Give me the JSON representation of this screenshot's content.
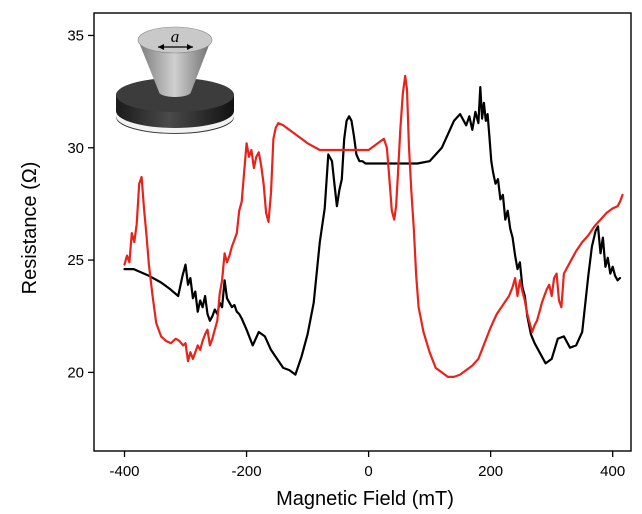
{
  "chart_data": {
    "type": "line",
    "title": "",
    "xlabel": "Magnetic Field (mT)",
    "ylabel": "Resistance (Ω)",
    "xlim": [
      -450,
      430
    ],
    "ylim": [
      16.5,
      36
    ],
    "xticks": [
      -400,
      -200,
      0,
      200,
      400
    ],
    "yticks": [
      20,
      25,
      30,
      35
    ],
    "xtick_labels": [
      "-400",
      "-200",
      "0",
      "200",
      "400"
    ],
    "ytick_labels": [
      "20",
      "25",
      "30",
      "35"
    ],
    "grid": false,
    "legend": "none",
    "inset_label": "a",
    "series": [
      {
        "color": "#000000",
        "x": [
          -400,
          -385,
          -360,
          -340,
          -325,
          -312,
          -305,
          -300,
          -296,
          -292,
          -288,
          -284,
          -280,
          -276,
          -272,
          -268,
          -264,
          -260,
          -256,
          -252,
          -248,
          -244,
          -240,
          -236,
          -232,
          -228,
          -224,
          -220,
          -216,
          -212,
          -208,
          -200,
          -190,
          -180,
          -170,
          -160,
          -150,
          -140,
          -130,
          -120,
          -110,
          -100,
          -90,
          -80,
          -72,
          -66,
          -60,
          -56,
          -52,
          -48,
          -44,
          -40,
          -36,
          -32,
          -28,
          -24,
          -20,
          -15,
          -10,
          -5,
          0,
          10,
          20,
          40,
          60,
          80,
          100,
          120,
          140,
          150,
          160,
          165,
          170,
          175,
          180,
          183,
          186,
          189,
          192,
          195,
          198,
          201,
          204,
          208,
          212,
          216,
          220,
          224,
          228,
          232,
          236,
          240,
          244,
          248,
          252,
          256,
          260,
          266,
          272,
          280,
          290,
          300,
          310,
          320,
          330,
          340,
          350,
          360,
          366,
          372,
          376,
          380,
          384,
          388,
          392,
          396,
          400,
          404,
          408,
          412
        ],
        "y": [
          24.6,
          24.6,
          24.3,
          24,
          23.7,
          23.4,
          24.3,
          24.8,
          23.9,
          24.2,
          23.3,
          23.6,
          22.7,
          23.2,
          22.9,
          23.4,
          22.6,
          22.3,
          22.5,
          22.8,
          22.6,
          23.1,
          22.9,
          24.1,
          23.3,
          23.1,
          22.9,
          23.0,
          22.7,
          22.6,
          22.4,
          21.9,
          21.2,
          21.8,
          21.6,
          21.0,
          20.6,
          20.2,
          20.1,
          19.9,
          20.7,
          21.7,
          23.1,
          25.8,
          27.3,
          29.7,
          29.4,
          28.4,
          27.4,
          28.1,
          28.6,
          30.4,
          31.2,
          31.4,
          31.2,
          30.5,
          29.7,
          29.4,
          29.4,
          29.3,
          29.3,
          29.3,
          29.3,
          29.3,
          29.3,
          29.3,
          29.4,
          30.0,
          31.2,
          31.5,
          31.0,
          31.4,
          30.8,
          31.6,
          31.1,
          32.7,
          31.3,
          32.0,
          31.2,
          31.5,
          30.5,
          29.4,
          28.9,
          28.4,
          28.6,
          27.7,
          27.9,
          26.8,
          27.2,
          26.4,
          26.0,
          25.2,
          24.6,
          24.9,
          23.8,
          23.4,
          22.5,
          21.7,
          21.3,
          20.9,
          20.4,
          20.6,
          21.5,
          21.6,
          21.1,
          21.2,
          21.8,
          24.3,
          25.6,
          26.3,
          26.5,
          25.3,
          26.0,
          24.7,
          25.1,
          24.4,
          24.7,
          24.3,
          24.1,
          24.2
        ],
        "width": 2.2
      },
      {
        "color": "#e8231c",
        "x": [
          -400,
          -396,
          -392,
          -388,
          -384,
          -380,
          -376,
          -372,
          -368,
          -364,
          -360,
          -354,
          -348,
          -340,
          -332,
          -324,
          -316,
          -310,
          -304,
          -300,
          -296,
          -292,
          -288,
          -284,
          -280,
          -276,
          -272,
          -268,
          -264,
          -260,
          -256,
          -252,
          -248,
          -244,
          -240,
          -236,
          -232,
          -228,
          -224,
          -220,
          -216,
          -212,
          -208,
          -204,
          -200,
          -196,
          -192,
          -188,
          -184,
          -180,
          -176,
          -172,
          -168,
          -164,
          -160,
          -156,
          -152,
          -148,
          -140,
          -120,
          -100,
          -80,
          -60,
          -40,
          -20,
          0,
          10,
          20,
          25,
          30,
          34,
          38,
          42,
          45,
          48,
          52,
          56,
          60,
          63,
          66,
          70,
          74,
          78,
          82,
          90,
          100,
          110,
          120,
          130,
          140,
          150,
          160,
          170,
          180,
          190,
          200,
          210,
          220,
          230,
          236,
          240,
          244,
          248,
          252,
          256,
          260,
          264,
          268,
          272,
          276,
          280,
          284,
          288,
          292,
          296,
          300,
          304,
          308,
          312,
          316,
          320,
          330,
          340,
          350,
          360,
          370,
          380,
          390,
          400,
          408,
          412,
          416
        ],
        "y": [
          24.8,
          25.2,
          24.9,
          26.2,
          25.8,
          26.6,
          28.4,
          28.7,
          27.3,
          26.1,
          24.8,
          23.4,
          22.2,
          21.6,
          21.4,
          21.3,
          21.5,
          21.4,
          21.2,
          21.3,
          20.5,
          20.9,
          20.6,
          20.9,
          21.2,
          21.0,
          21.4,
          21.7,
          21.9,
          21.2,
          21.5,
          21.9,
          22.3,
          23.5,
          24.1,
          25.3,
          24.9,
          25.2,
          25.6,
          25.9,
          26.2,
          27.2,
          27.6,
          28.9,
          30.2,
          29.6,
          29.9,
          29.1,
          29.6,
          29.8,
          29.2,
          28.4,
          27.1,
          26.7,
          28.0,
          30.4,
          30.9,
          31.1,
          31.0,
          30.6,
          30.2,
          29.9,
          29.9,
          29.9,
          29.9,
          29.9,
          30.1,
          30.3,
          30.4,
          30.0,
          28.6,
          27.2,
          26.8,
          27.4,
          28.8,
          30.8,
          32.4,
          33.2,
          32.6,
          30.1,
          28.1,
          26.4,
          24.3,
          22.9,
          21.8,
          20.9,
          20.2,
          20.0,
          19.8,
          19.8,
          19.9,
          20.1,
          20.3,
          20.6,
          21.3,
          22.0,
          22.6,
          23.0,
          23.4,
          23.8,
          24.2,
          23.4,
          24.1,
          23.6,
          23.2,
          22.6,
          22.2,
          21.8,
          22.1,
          22.3,
          22.7,
          23.1,
          23.4,
          23.7,
          23.9,
          23.4,
          24.2,
          24.4,
          23.2,
          22.9,
          24.4,
          24.9,
          25.4,
          25.8,
          26.1,
          26.5,
          26.8,
          27.1,
          27.3,
          27.4,
          27.6,
          27.9
        ]
      }
    ]
  }
}
